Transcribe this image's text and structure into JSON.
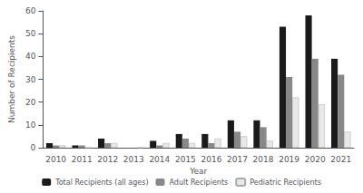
{
  "chart_data": {
    "type": "bar",
    "xlabel": "Year",
    "ylabel": "Number of Recipients",
    "categories": [
      "2010",
      "2011",
      "2012",
      "2013",
      "2014",
      "2015",
      "2016",
      "2017",
      "2018",
      "2019",
      "2020",
      "2021"
    ],
    "series": [
      {
        "name": "Total Recipients (all ages)",
        "color": "#1a1a1a",
        "values": [
          2,
          1,
          4,
          0,
          3,
          6,
          6,
          12,
          12,
          53,
          58,
          39
        ]
      },
      {
        "name": "Adult Recipients",
        "color": "#888888",
        "values": [
          1,
          1,
          2,
          0,
          1,
          4,
          2,
          7,
          9,
          31,
          39,
          32
        ]
      },
      {
        "name": "Pediatric Recipients",
        "color": "#e8e8e8",
        "values": [
          1,
          0,
          2,
          0,
          2,
          2,
          4,
          5,
          3,
          22,
          19,
          7
        ]
      }
    ],
    "ylim": [
      0,
      60
    ],
    "yticks": [
      0,
      10,
      20,
      30,
      40,
      50,
      60
    ],
    "grid": false,
    "legend": "bottom"
  }
}
